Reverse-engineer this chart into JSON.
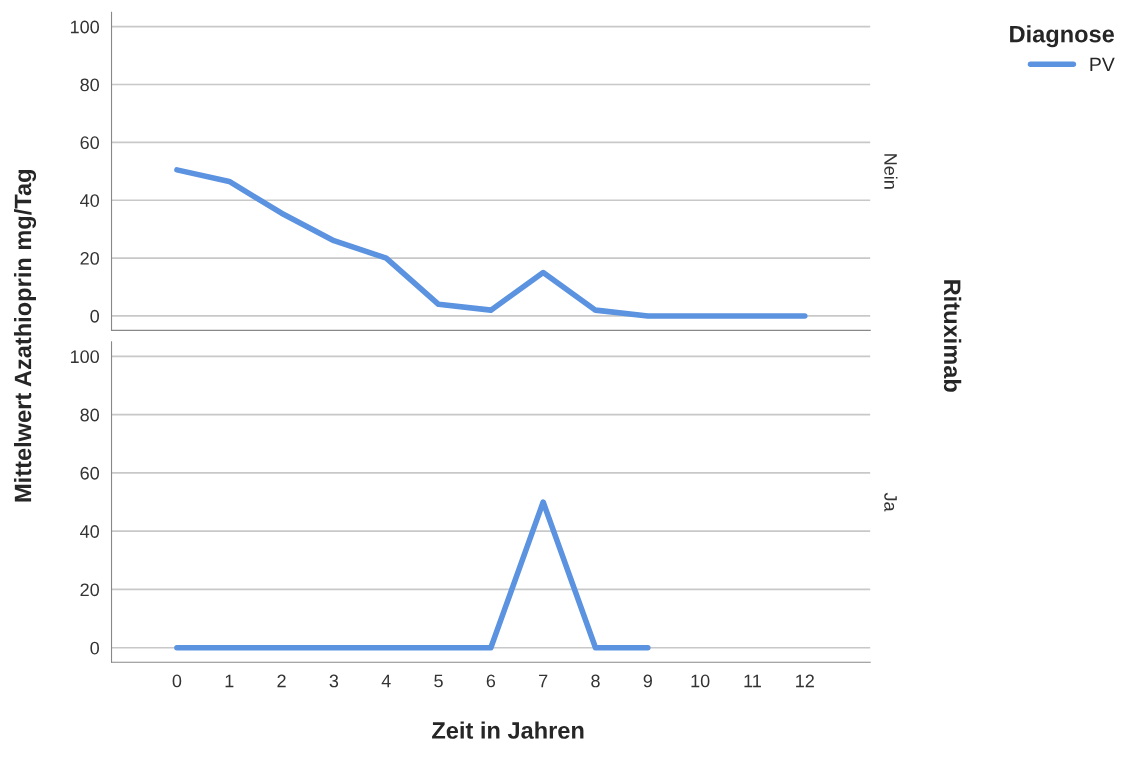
{
  "chart_data": [
    {
      "type": "line",
      "ylabel": "Mittelwert Azathioprin mg/Tag",
      "legend_title": "Diagnose",
      "legend": "top right",
      "annotations": [
        "Nein",
        "Rituximab"
      ],
      "grid": "y",
      "tick_labels": "y",
      "categories": [
        "0",
        "1",
        "2",
        "3",
        "4",
        "5",
        "6",
        "7",
        "8",
        "9",
        "10",
        "11",
        "12"
      ],
      "series": [
        {
          "name": "PV",
          "color": "#5b93e0",
          "values": [
            50.5,
            46.5,
            35.5,
            26,
            20,
            4,
            2,
            15,
            2,
            0,
            0,
            0,
            0
          ]
        }
      ],
      "ylim": [
        -5,
        105
      ],
      "yticks": [
        0,
        20,
        40,
        60,
        80,
        100
      ]
    },
    {
      "type": "line",
      "annotations": [
        "Ja"
      ],
      "xlabel": "Zeit in Jahren",
      "grid": "y",
      "categories": [
        "0",
        "1",
        "2",
        "3",
        "4",
        "5",
        "6",
        "7",
        "8",
        "9",
        "10",
        "11",
        "12"
      ],
      "series": [
        {
          "color": "#5b93e0",
          "values": [
            0,
            0,
            0,
            0,
            0,
            0,
            0,
            50,
            0,
            0,
            null,
            null,
            null
          ]
        }
      ],
      "ylim": [
        -5,
        105
      ],
      "yticks": [
        0,
        20,
        40,
        60,
        80,
        100
      ]
    }
  ]
}
